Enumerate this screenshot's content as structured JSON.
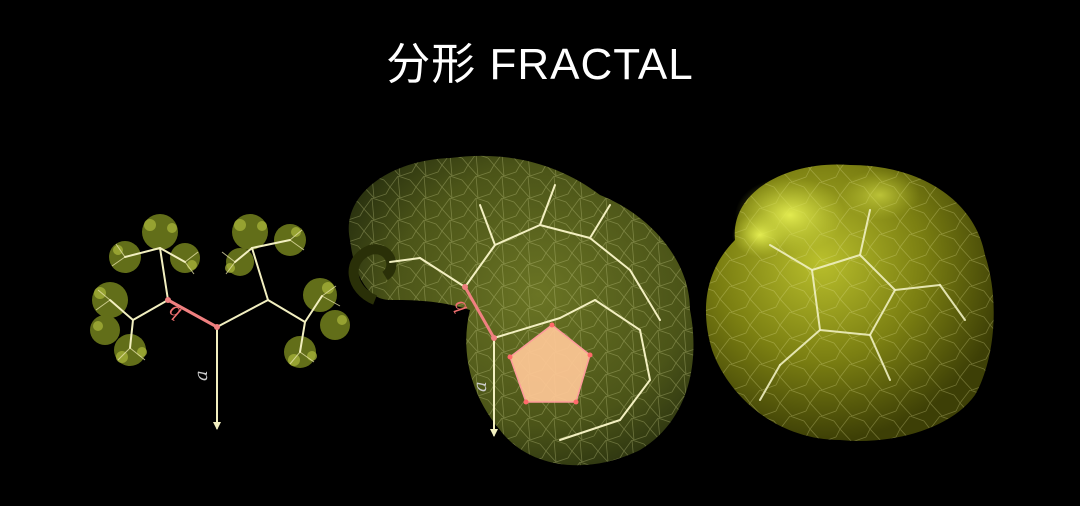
{
  "title": "分形 FRACTAL",
  "figures": [
    {
      "name": "binary-tree-fractal",
      "labels": {
        "a": "a",
        "b": "b"
      }
    },
    {
      "name": "pentagon-tree-fractal",
      "labels": {
        "a": "a",
        "b": "b"
      }
    },
    {
      "name": "dense-pentagon-fractal"
    }
  ],
  "colors": {
    "background": "#000000",
    "title": "#ffffff",
    "branch": "#f2efc0",
    "leaf": "#8a9a2a",
    "leaf_bright": "#d8e04a",
    "highlight": "#f08080",
    "pentagon_fill": "#ffc896"
  }
}
